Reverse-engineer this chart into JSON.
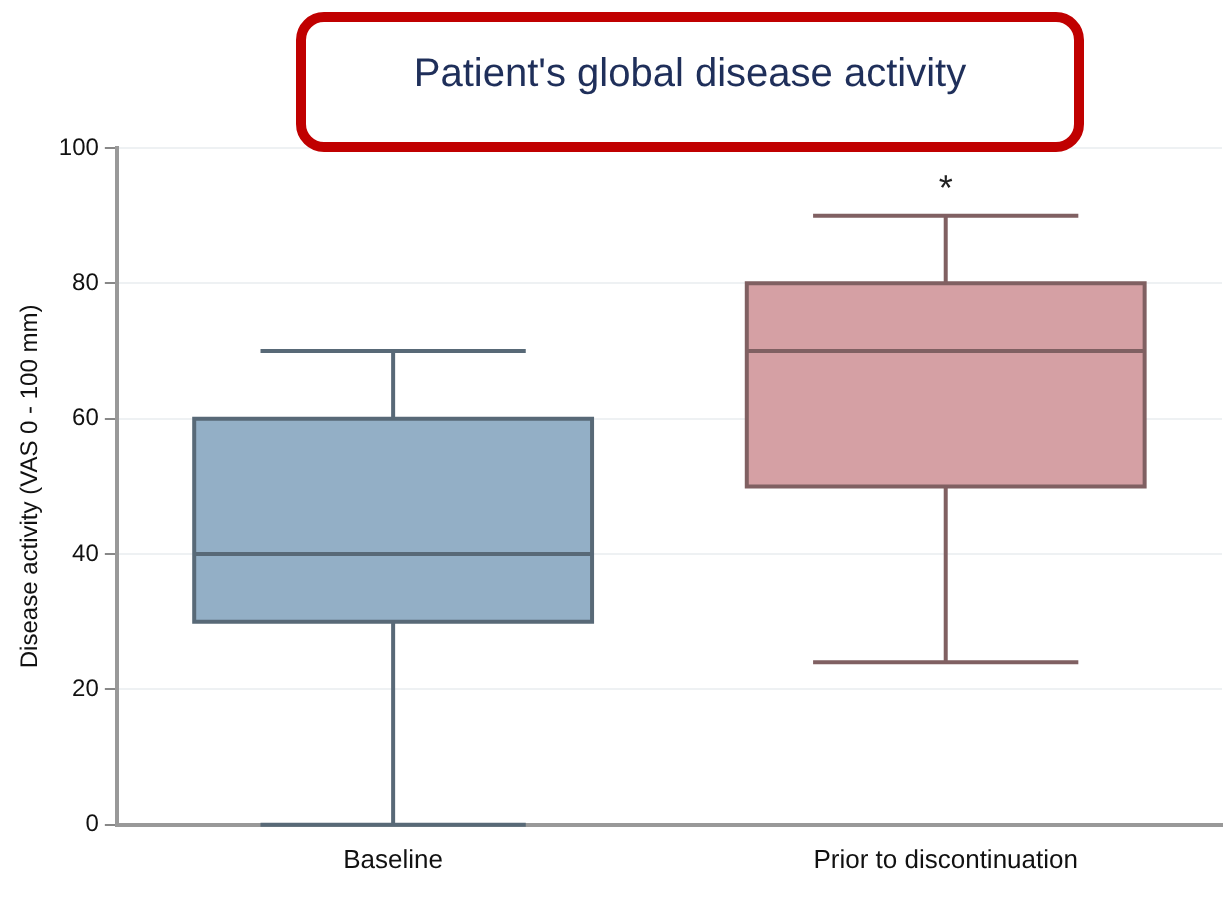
{
  "chart_data": {
    "type": "box",
    "title": "Patient's global disease activity",
    "ylabel": "Disease activity (VAS 0 - 100 mm)",
    "categories": [
      "Baseline",
      "Prior to discontinuation"
    ],
    "colors": [
      "#93afc6",
      "#d5a0a4"
    ],
    "boxes": [
      {
        "low": 0,
        "q1": 30,
        "median": 40,
        "q3": 60,
        "high": 70
      },
      {
        "low": 24,
        "q1": 50,
        "median": 70,
        "q3": 80,
        "high": 90
      }
    ],
    "ylim": [
      0,
      100
    ],
    "yticks": [
      0,
      20,
      40,
      60,
      80,
      100
    ],
    "grid": "y",
    "legend": false,
    "annotations": [
      "*"
    ]
  }
}
